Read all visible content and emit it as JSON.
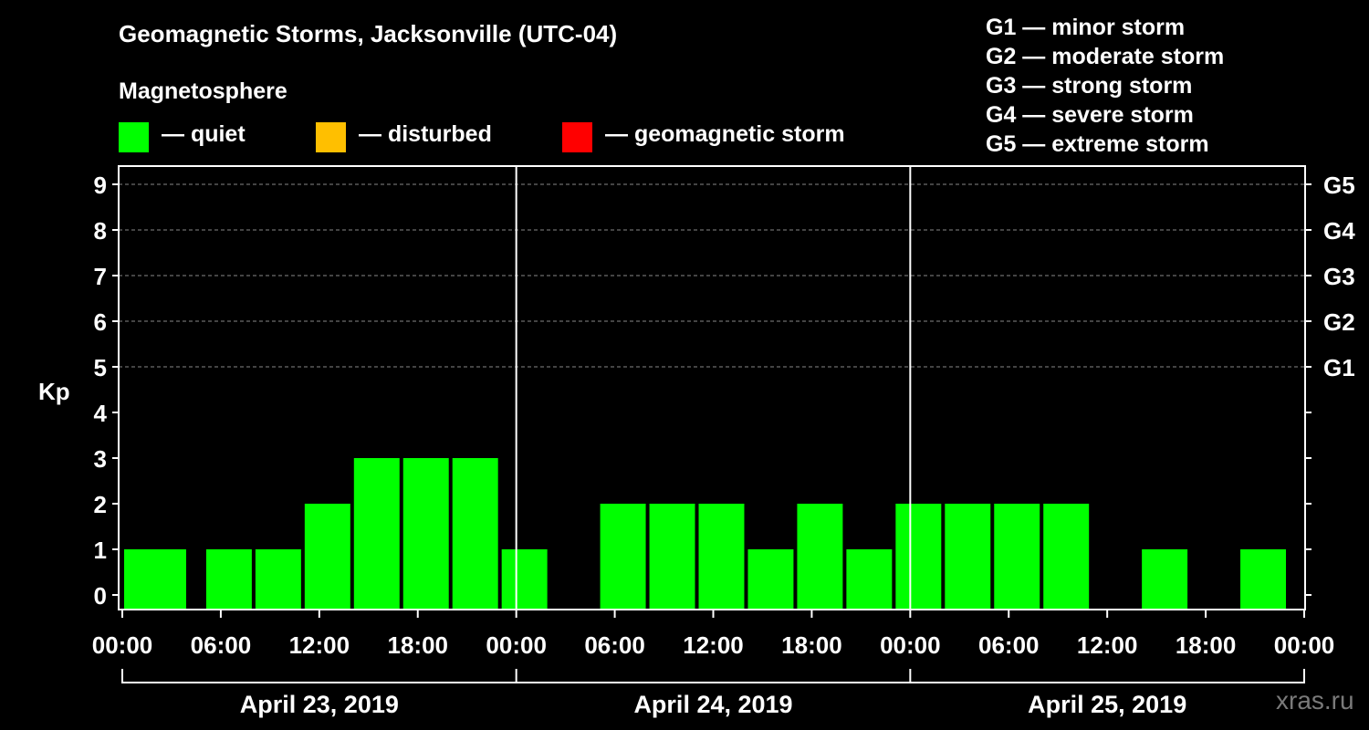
{
  "title": "Geomagnetic Storms, Jacksonville (UTC-04)",
  "subtitle": "Magnetosphere",
  "legend": [
    {
      "label": "— quiet",
      "color": "#00ff00"
    },
    {
      "label": "— disturbed",
      "color": "#ffbf00"
    },
    {
      "label": "— geomagnetic storm",
      "color": "#ff0000"
    }
  ],
  "storm_scale": [
    "G1 — minor storm",
    "G2 — moderate storm",
    "G3 — strong storm",
    "G4 — severe storm",
    "G5 — extreme storm"
  ],
  "watermark": "xras.ru",
  "colors": {
    "quiet": "#00ff00",
    "disturbed": "#ffbf00",
    "storm": "#ff0000",
    "axis": "#ffffff",
    "grid": "#888888"
  },
  "chart_data": {
    "type": "bar",
    "ylabel": "Kp",
    "ylim": [
      0,
      9
    ],
    "yticks": [
      "0",
      "1",
      "2",
      "3",
      "4",
      "5",
      "6",
      "7",
      "8",
      "9"
    ],
    "right_ticks": [
      {
        "kp": 5,
        "label": "G1"
      },
      {
        "kp": 6,
        "label": "G2"
      },
      {
        "kp": 7,
        "label": "G3"
      },
      {
        "kp": 8,
        "label": "G4"
      },
      {
        "kp": 9,
        "label": "G5"
      }
    ],
    "xticks": [
      "00:00",
      "06:00",
      "12:00",
      "18:00",
      "00:00",
      "06:00",
      "12:00",
      "18:00",
      "00:00",
      "06:00",
      "12:00",
      "18:00",
      "00:00"
    ],
    "days": [
      "April 23, 2019",
      "April 24, 2019",
      "April 25, 2019"
    ],
    "bars": [
      {
        "start_h": 0,
        "end_h": 4,
        "kp": 1,
        "status": "quiet"
      },
      {
        "start_h": 5,
        "end_h": 8,
        "kp": 1,
        "status": "quiet"
      },
      {
        "start_h": 8,
        "end_h": 11,
        "kp": 1,
        "status": "quiet"
      },
      {
        "start_h": 11,
        "end_h": 14,
        "kp": 2,
        "status": "quiet"
      },
      {
        "start_h": 14,
        "end_h": 17,
        "kp": 3,
        "status": "quiet"
      },
      {
        "start_h": 17,
        "end_h": 20,
        "kp": 3,
        "status": "quiet"
      },
      {
        "start_h": 20,
        "end_h": 23,
        "kp": 3,
        "status": "quiet"
      },
      {
        "start_h": 23,
        "end_h": 26,
        "kp": 1,
        "status": "quiet"
      },
      {
        "start_h": 29,
        "end_h": 32,
        "kp": 2,
        "status": "quiet"
      },
      {
        "start_h": 32,
        "end_h": 35,
        "kp": 2,
        "status": "quiet"
      },
      {
        "start_h": 35,
        "end_h": 38,
        "kp": 2,
        "status": "quiet"
      },
      {
        "start_h": 38,
        "end_h": 41,
        "kp": 1,
        "status": "quiet"
      },
      {
        "start_h": 41,
        "end_h": 44,
        "kp": 2,
        "status": "quiet"
      },
      {
        "start_h": 44,
        "end_h": 47,
        "kp": 1,
        "status": "quiet"
      },
      {
        "start_h": 47,
        "end_h": 50,
        "kp": 2,
        "status": "quiet"
      },
      {
        "start_h": 50,
        "end_h": 53,
        "kp": 2,
        "status": "quiet"
      },
      {
        "start_h": 53,
        "end_h": 56,
        "kp": 2,
        "status": "quiet"
      },
      {
        "start_h": 56,
        "end_h": 59,
        "kp": 2,
        "status": "quiet"
      },
      {
        "start_h": 62,
        "end_h": 65,
        "kp": 1,
        "status": "quiet"
      },
      {
        "start_h": 68,
        "end_h": 71,
        "kp": 1,
        "status": "quiet"
      }
    ]
  }
}
